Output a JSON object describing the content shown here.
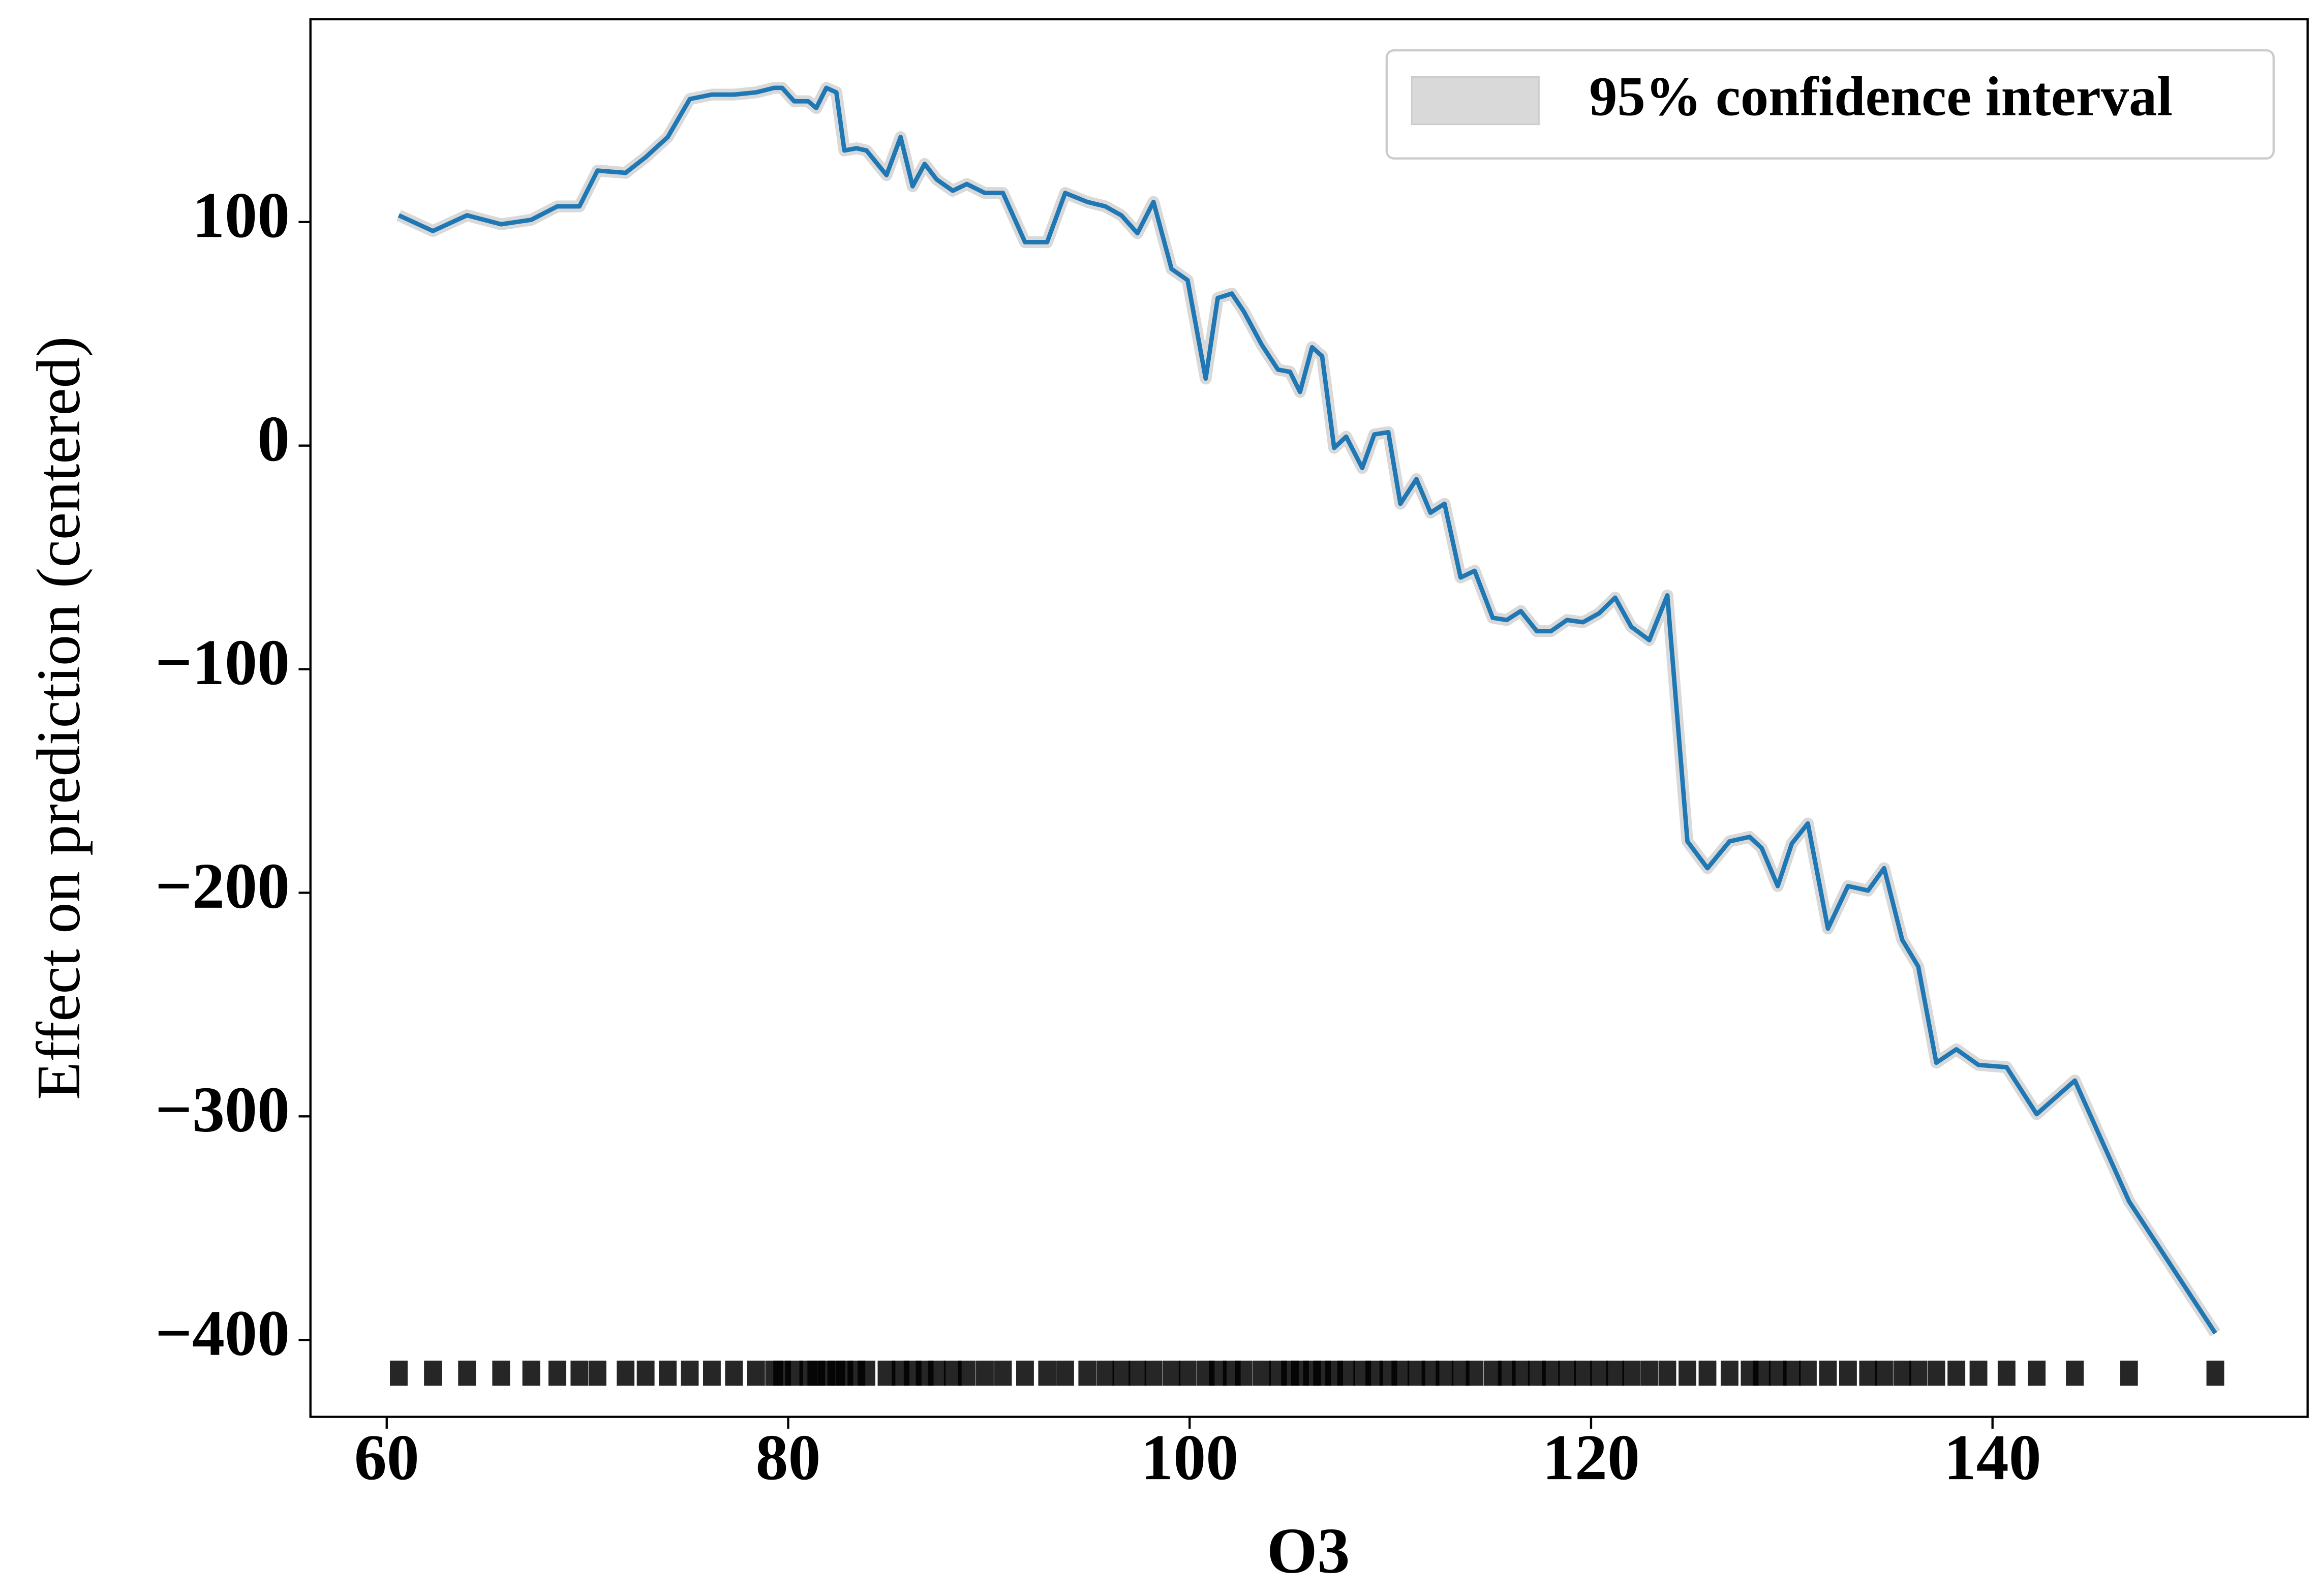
{
  "chart_data": {
    "type": "line",
    "x_label": "O3",
    "y_label": "Effect on prediction (centered)",
    "xlim": [
      56.2,
      155.7
    ],
    "ylim": [
      -434.4,
      190.7
    ],
    "xticks": [
      60,
      80,
      100,
      120,
      140
    ],
    "yticks": [
      {
        "value": -400,
        "label": "−400"
      },
      {
        "value": -300,
        "label": "−300"
      },
      {
        "value": -200,
        "label": "−200"
      },
      {
        "value": -100,
        "label": "−100"
      },
      0,
      100
    ],
    "x": [
      60.6,
      62.3,
      64.0,
      65.7,
      67.2,
      68.5,
      69.6,
      70.5,
      71.9,
      72.9,
      74.0,
      75.1,
      76.2,
      77.3,
      78.4,
      79.3,
      79.7,
      80.3,
      81.0,
      81.4,
      81.9,
      82.4,
      82.8,
      83.4,
      83.9,
      84.9,
      85.6,
      86.2,
      86.8,
      87.4,
      88.2,
      88.9,
      89.8,
      90.7,
      91.8,
      92.9,
      93.8,
      94.9,
      95.8,
      96.6,
      97.4,
      98.2,
      99.1,
      99.9,
      100.8,
      101.4,
      102.1,
      102.7,
      103.6,
      104.4,
      105.0,
      105.5,
      106.1,
      106.6,
      107.2,
      107.8,
      108.6,
      109.2,
      109.9,
      110.5,
      111.3,
      112.0,
      112.7,
      113.5,
      114.2,
      115.1,
      115.8,
      116.5,
      117.3,
      118.0,
      118.8,
      119.6,
      120.4,
      121.2,
      122.0,
      122.9,
      123.8,
      124.8,
      125.8,
      126.9,
      127.9,
      128.5,
      129.3,
      130.0,
      130.8,
      131.8,
      132.8,
      133.8,
      134.6,
      135.5,
      136.3,
      137.2,
      138.2,
      139.3,
      140.7,
      142.2,
      144.1,
      146.8,
      151.1
    ],
    "series": [
      {
        "color": "#1f77b4",
        "values": [
          103,
          96,
          103,
          99,
          101,
          107,
          107,
          123,
          122,
          129,
          138,
          155,
          157,
          157,
          158,
          160,
          160,
          154,
          154,
          151,
          160,
          158,
          132,
          133,
          132,
          121,
          138,
          116,
          126,
          119,
          114,
          117,
          113,
          113,
          91,
          91,
          113,
          109,
          107,
          103,
          95,
          109,
          79,
          74,
          30,
          66,
          68,
          60,
          45,
          34,
          33,
          24,
          44,
          40,
          -1,
          4,
          -10,
          5,
          6,
          -26,
          -15,
          -30,
          -26,
          -59,
          -56,
          -77,
          -78,
          -74,
          -83,
          -83,
          -78,
          -79,
          -75,
          -68,
          -81,
          -87,
          -67,
          -177,
          -189,
          -177,
          -175,
          -180,
          -197,
          -178,
          -169,
          -216,
          -197,
          -199,
          -189,
          -221,
          -233,
          -276,
          -270,
          -277,
          -278,
          -299,
          -284,
          -338,
          -397
        ]
      }
    ],
    "confidence_band": {
      "name": "95% confidence interval",
      "color": "#d9d9d9"
    }
  }
}
